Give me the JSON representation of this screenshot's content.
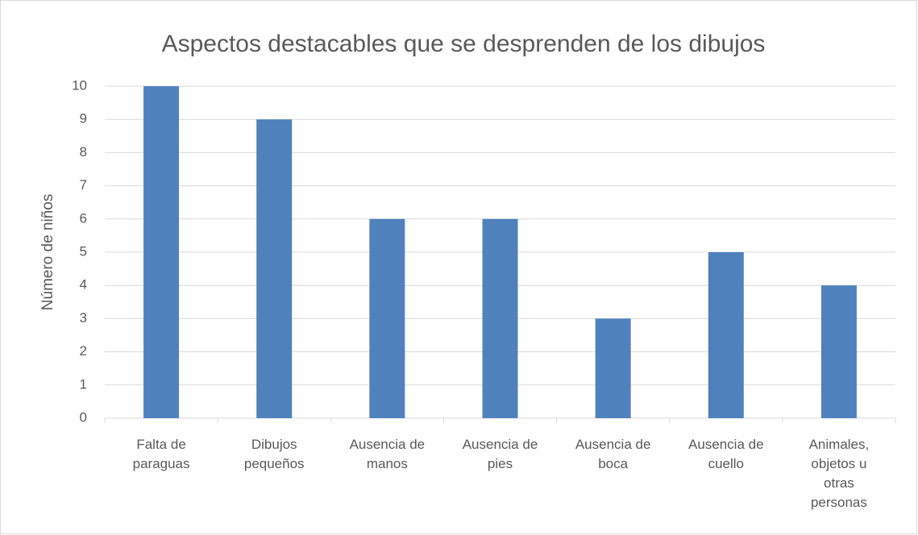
{
  "chart_data": {
    "type": "bar",
    "title": "Aspectos destacables que se desprenden de los dibujos",
    "y_label": "Número de niños",
    "categories": [
      "Falta de paraguas",
      "Dibujos pequeños",
      "Ausencia de manos",
      "Ausencia de pies",
      "Ausencia de boca",
      "Ausencia de cuello",
      "Animales, objetos u otras personas"
    ],
    "values": [
      10,
      9,
      6,
      6,
      3,
      5,
      4
    ],
    "color": "#4f81bd",
    "ylim": [
      0,
      10
    ],
    "yticks": [
      0,
      1,
      2,
      3,
      4,
      5,
      6,
      7,
      8,
      9,
      10
    ],
    "grid": true
  }
}
